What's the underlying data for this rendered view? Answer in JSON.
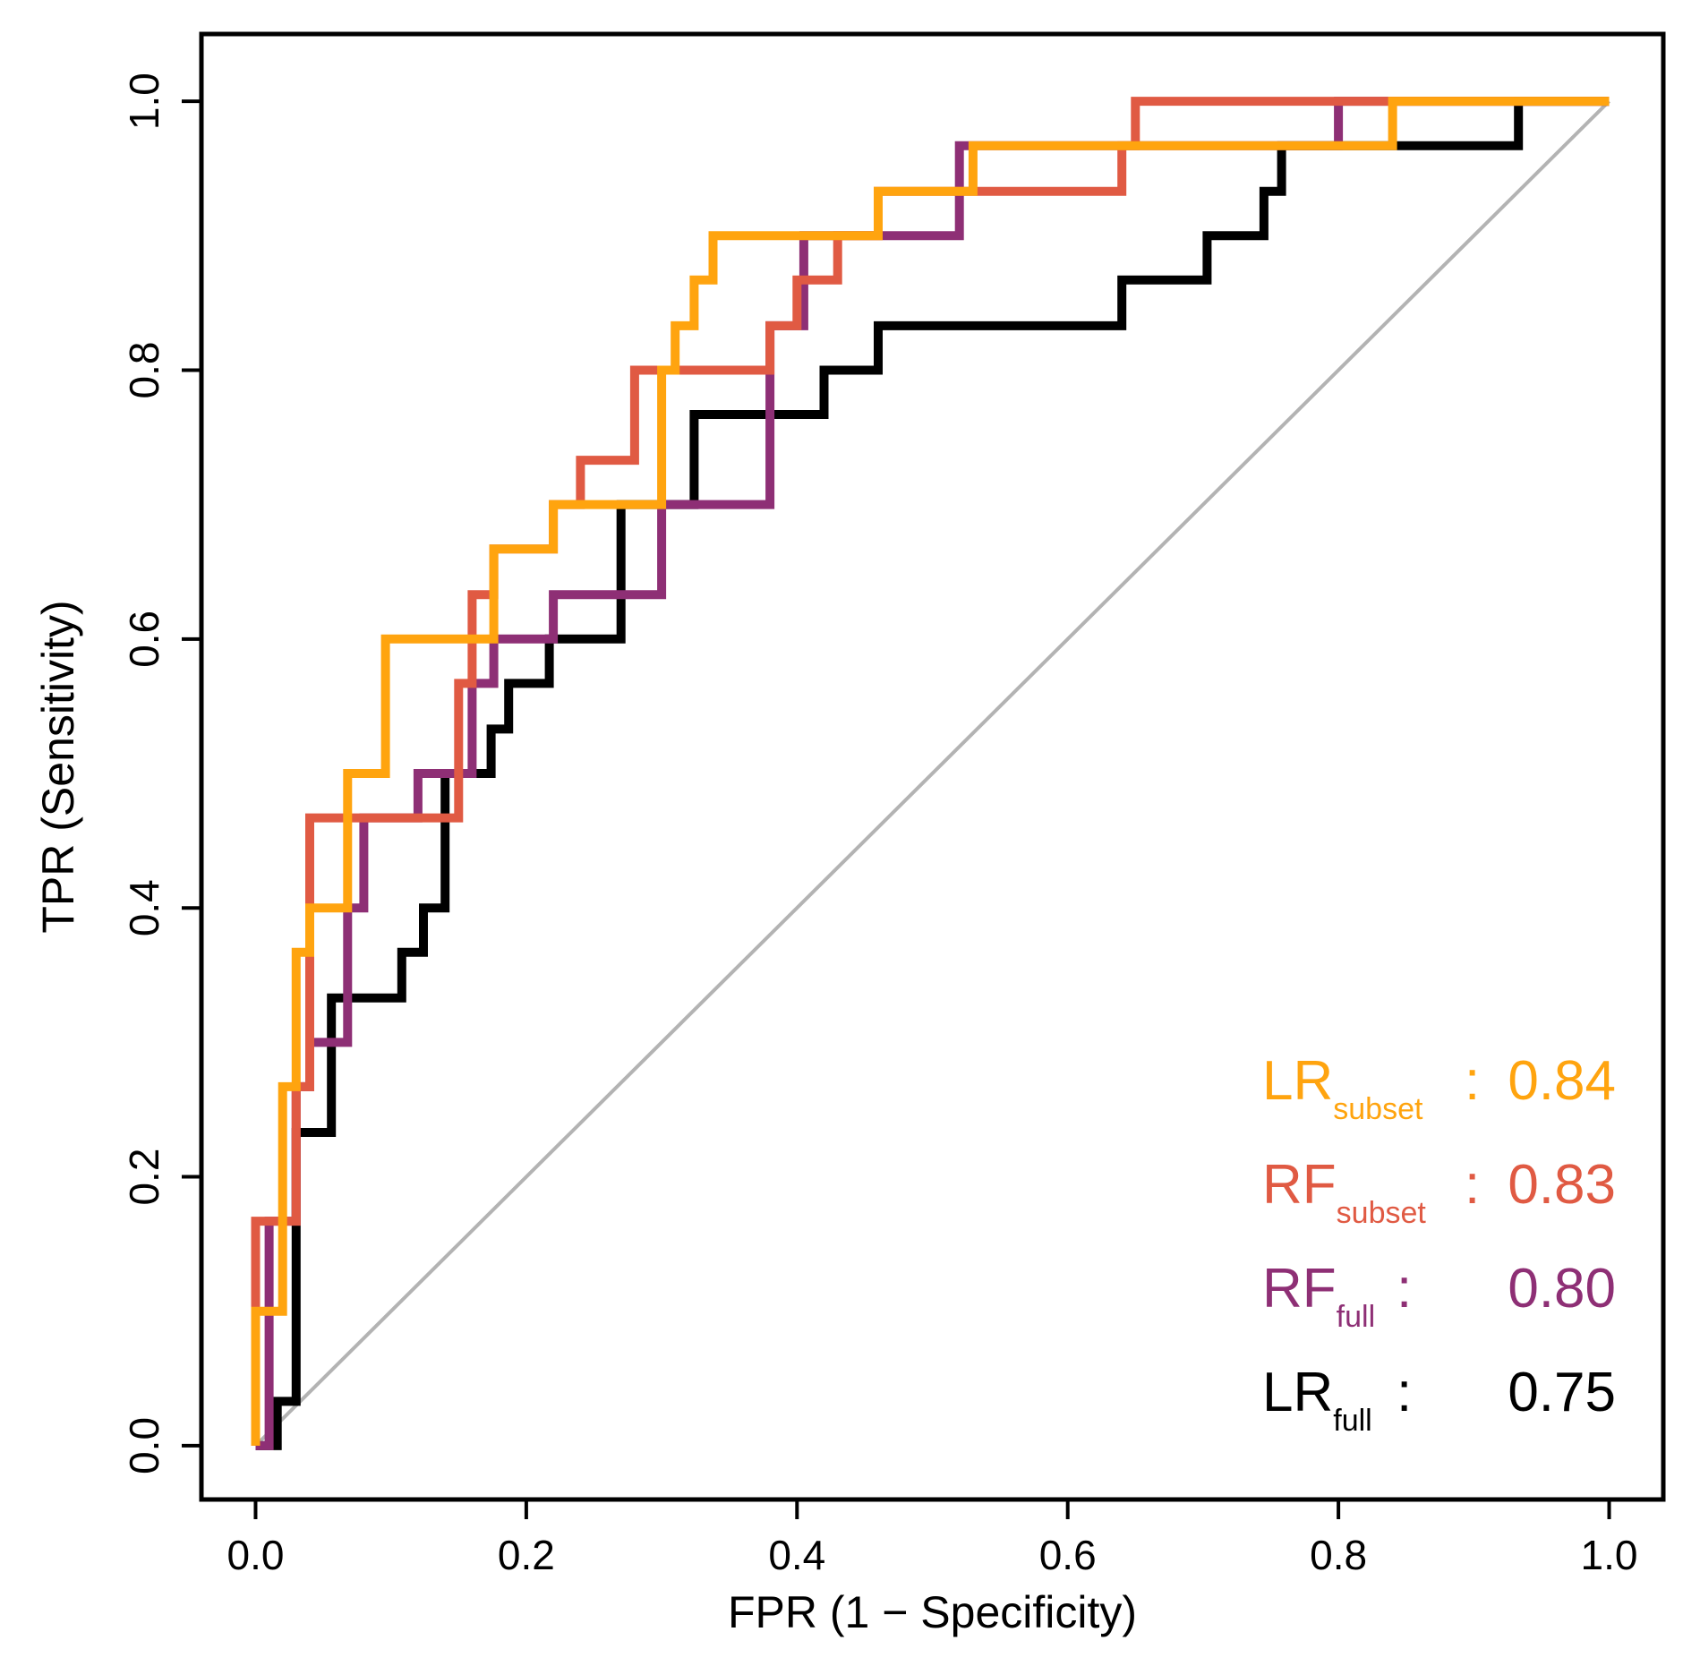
{
  "chart_data": {
    "type": "line",
    "title": "",
    "xlabel": "FPR (1 − Specificity)",
    "ylabel": "TPR (Sensitivity)",
    "xlim": [
      -0.04,
      1.04
    ],
    "ylim": [
      -0.04,
      1.05
    ],
    "xticks": [
      0.0,
      0.2,
      0.4,
      0.6,
      0.8,
      1.0
    ],
    "yticks": [
      0.0,
      0.2,
      0.4,
      0.6,
      0.8,
      1.0
    ],
    "xtick_labels": [
      "0.0",
      "0.2",
      "0.4",
      "0.6",
      "0.8",
      "1.0"
    ],
    "ytick_labels": [
      "0.0",
      "0.2",
      "0.4",
      "0.6",
      "0.8",
      "1.0"
    ],
    "grid": false,
    "legend_position": "bottom-right",
    "diagonal": {
      "x": [
        0,
        1
      ],
      "y": [
        0,
        1
      ],
      "color": "#b3b3b3"
    },
    "series": [
      {
        "name": "LR",
        "subscript": "full",
        "separator": ":",
        "auc_label": "0.75",
        "color": "#000000",
        "x": [
          0,
          0.016,
          0.016,
          0.03,
          0.03,
          0.03,
          0.056,
          0.056,
          0.056,
          0.108,
          0.108,
          0.124,
          0.124,
          0.14,
          0.14,
          0.174,
          0.174,
          0.187,
          0.187,
          0.217,
          0.217,
          0.27,
          0.27,
          0.324,
          0.324,
          0.324,
          0.375,
          0.375,
          0.42,
          0.42,
          0.46,
          0.46,
          0.64,
          0.64,
          0.703,
          0.703,
          0.745,
          0.745,
          0.758,
          0.758,
          0.933,
          0.933,
          1.0
        ],
        "y": [
          0,
          0,
          0.033,
          0.033,
          0.167,
          0.233,
          0.233,
          0.267,
          0.333,
          0.333,
          0.367,
          0.367,
          0.4,
          0.4,
          0.5,
          0.5,
          0.533,
          0.533,
          0.567,
          0.567,
          0.6,
          0.6,
          0.7,
          0.7,
          0.733,
          0.767,
          0.767,
          0.767,
          0.767,
          0.8,
          0.8,
          0.833,
          0.833,
          0.867,
          0.867,
          0.9,
          0.9,
          0.933,
          0.933,
          0.967,
          0.967,
          1.0,
          1.0
        ]
      },
      {
        "name": "RF",
        "subscript": "full",
        "separator": ":",
        "auc_label": "0.80",
        "color": "#8e2f75",
        "x": [
          0,
          0.01,
          0.01,
          0.03,
          0.03,
          0.04,
          0.04,
          0.068,
          0.068,
          0.08,
          0.08,
          0.12,
          0.12,
          0.16,
          0.16,
          0.176,
          0.176,
          0.22,
          0.22,
          0.3,
          0.3,
          0.38,
          0.38,
          0.405,
          0.405,
          0.52,
          0.52,
          0.8,
          0.8,
          1.0
        ],
        "y": [
          0,
          0,
          0.167,
          0.167,
          0.267,
          0.267,
          0.3,
          0.3,
          0.4,
          0.4,
          0.467,
          0.467,
          0.5,
          0.5,
          0.567,
          0.567,
          0.6,
          0.6,
          0.633,
          0.633,
          0.7,
          0.7,
          0.833,
          0.833,
          0.9,
          0.9,
          0.967,
          0.967,
          1.0,
          1.0
        ]
      },
      {
        "name": "RF",
        "subscript": "subset",
        "separator": ":",
        "auc_label": "0.83",
        "color": "#e05a43",
        "x": [
          0,
          0,
          0.03,
          0.03,
          0.04,
          0.04,
          0.04,
          0.15,
          0.15,
          0.16,
          0.16,
          0.176,
          0.176,
          0.22,
          0.22,
          0.24,
          0.24,
          0.28,
          0.28,
          0.38,
          0.38,
          0.4,
          0.4,
          0.43,
          0.43,
          0.46,
          0.46,
          0.64,
          0.64,
          0.65,
          0.65,
          0.84,
          0.84,
          1.0
        ],
        "y": [
          0,
          0.167,
          0.167,
          0.267,
          0.267,
          0.333,
          0.467,
          0.467,
          0.567,
          0.567,
          0.633,
          0.633,
          0.667,
          0.667,
          0.7,
          0.7,
          0.733,
          0.733,
          0.8,
          0.8,
          0.833,
          0.833,
          0.867,
          0.867,
          0.9,
          0.9,
          0.933,
          0.933,
          0.967,
          0.967,
          1.0,
          1.0,
          1.0,
          1.0
        ]
      },
      {
        "name": "LR",
        "subscript": "subset",
        "separator": ":",
        "auc_label": "0.84",
        "color": "#ffa40f",
        "x": [
          0,
          0,
          0.02,
          0.02,
          0.03,
          0.03,
          0.04,
          0.04,
          0.068,
          0.068,
          0.096,
          0.096,
          0.176,
          0.176,
          0.22,
          0.22,
          0.3,
          0.3,
          0.31,
          0.31,
          0.324,
          0.324,
          0.338,
          0.338,
          0.46,
          0.46,
          0.53,
          0.53,
          0.84,
          0.84,
          1.0
        ],
        "y": [
          0,
          0.1,
          0.1,
          0.267,
          0.267,
          0.367,
          0.367,
          0.4,
          0.4,
          0.5,
          0.5,
          0.6,
          0.6,
          0.667,
          0.667,
          0.7,
          0.7,
          0.8,
          0.8,
          0.833,
          0.833,
          0.867,
          0.867,
          0.9,
          0.9,
          0.933,
          0.933,
          0.967,
          0.967,
          1.0,
          1.0
        ]
      }
    ]
  }
}
